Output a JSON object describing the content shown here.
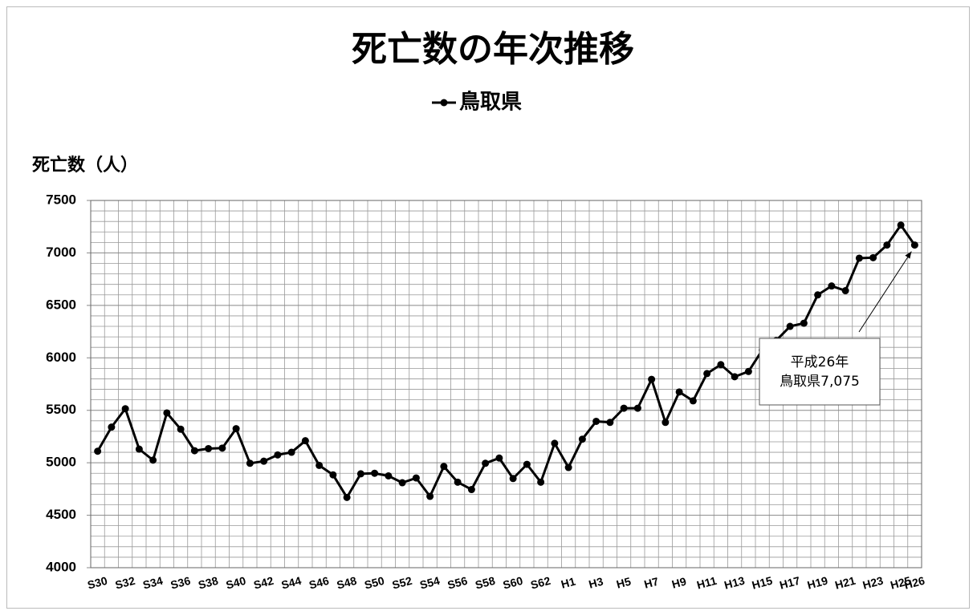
{
  "chart_data": {
    "type": "line",
    "title": "死亡数の年次推移",
    "y_label": "死亡数（人）",
    "categories": [
      "S30",
      null,
      "S32",
      null,
      "S34",
      null,
      "S36",
      null,
      "S38",
      null,
      "S40",
      null,
      "S42",
      null,
      "S44",
      null,
      "S46",
      null,
      "S48",
      null,
      "S50",
      null,
      "S52",
      null,
      "S54",
      null,
      "S56",
      null,
      "S58",
      null,
      "S60",
      null,
      "S62",
      null,
      "H1",
      null,
      "H3",
      null,
      "H5",
      null,
      "H7",
      null,
      "H9",
      null,
      "H11",
      null,
      "H13",
      null,
      "H15",
      null,
      "H17",
      null,
      "H19",
      null,
      "H21",
      null,
      "H23",
      null,
      "H25",
      "H26"
    ],
    "series": [
      {
        "name": "鳥取県",
        "color": "#000000",
        "values": [
          5110,
          5340,
          5515,
          5130,
          5025,
          5475,
          5320,
          5115,
          5135,
          5140,
          5325,
          4995,
          5015,
          5075,
          5100,
          5210,
          4975,
          4885,
          4670,
          4895,
          4900,
          4875,
          4810,
          4855,
          4680,
          4965,
          4815,
          4745,
          4995,
          5045,
          4850,
          4985,
          4815,
          5185,
          4955,
          5225,
          5395,
          5385,
          5520,
          5520,
          5795,
          5385,
          5675,
          5590,
          5850,
          5935,
          5820,
          5870,
          6075,
          6165,
          6300,
          6330,
          6600,
          6685,
          6640,
          6950,
          6955,
          7075,
          7265,
          7075
        ]
      }
    ],
    "ylim": [
      4000,
      7500
    ],
    "yticks": [
      4000,
      4500,
      5000,
      5500,
      6000,
      6500,
      7000,
      7500
    ],
    "grid": true,
    "legend": "top",
    "annotations": [
      {
        "lines": [
          "平成26年",
          "鳥取県7,075"
        ],
        "point": 59
      }
    ]
  }
}
